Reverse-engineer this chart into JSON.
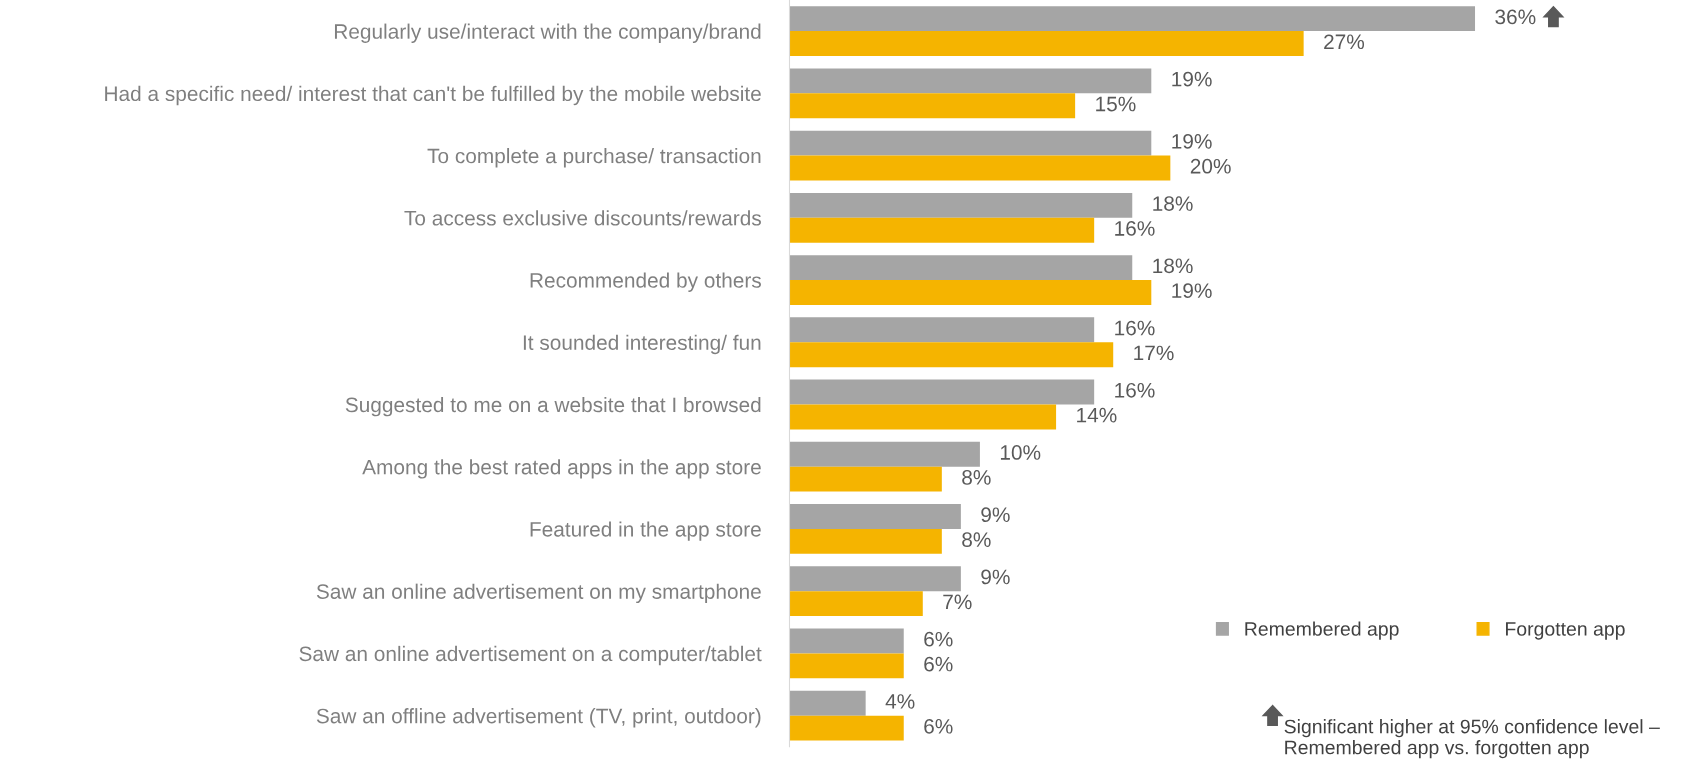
{
  "chart_data": {
    "type": "bar",
    "orientation": "horizontal",
    "categories": [
      "Regularly use/interact with the company/brand",
      "Had a specific need/ interest that can't be fulfilled by the mobile website",
      "To complete a purchase/ transaction",
      "To access exclusive discounts/rewards",
      "Recommended by others",
      "It sounded interesting/ fun",
      "Suggested to me on a website that I browsed",
      "Among the best rated apps in the app store",
      "Featured in the app store",
      "Saw an online advertisement on my smartphone",
      "Saw an online advertisement on a computer/tablet",
      "Saw an offline advertisement (TV, print, outdoor)"
    ],
    "series": [
      {
        "name": "Remembered app",
        "color": "#a5a5a5",
        "values": [
          36,
          19,
          19,
          18,
          18,
          16,
          16,
          10,
          9,
          9,
          6,
          4
        ],
        "value_labels": [
          "36%",
          "19%",
          "19%",
          "18%",
          "18%",
          "16%",
          "16%",
          "10%",
          "9%",
          "9%",
          "6%",
          "4%"
        ]
      },
      {
        "name": "Forgotten app",
        "color": "#f5b400",
        "values": [
          27,
          15,
          20,
          16,
          19,
          17,
          14,
          8,
          8,
          7,
          6,
          6
        ],
        "value_labels": [
          "27%",
          "15%",
          "20%",
          "16%",
          "19%",
          "17%",
          "14%",
          "8%",
          "8%",
          "7%",
          "6%",
          "6%"
        ]
      }
    ],
    "legend": "bottom right",
    "grid": false,
    "annotations": [
      "Significant higher at 95% confidence level –\nRemembered app vs. forgotten app"
    ]
  }
}
